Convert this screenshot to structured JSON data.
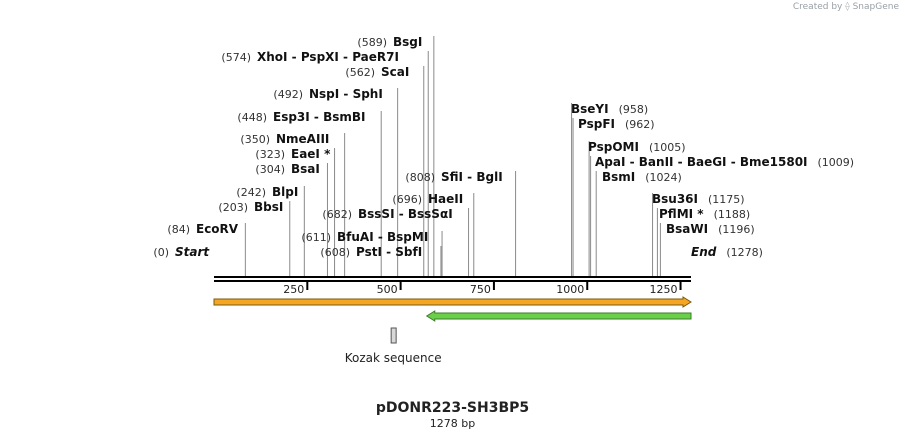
{
  "credit": {
    "prefix": "Created by",
    "brand": "SnapGene"
  },
  "plasmid": {
    "name": "pDONR223-SH3BP5",
    "length_label": "1278 bp",
    "length_bp": 1278
  },
  "ruler": {
    "ticks": [
      250,
      500,
      750,
      1000,
      1250
    ]
  },
  "sites": [
    {
      "pos": 0,
      "label": "Start",
      "pos_label": "(0)",
      "italic": true
    },
    {
      "pos": 84,
      "label": "EcoRV",
      "pos_label": "(84)"
    },
    {
      "pos": 203,
      "label": "BbsI",
      "pos_label": "(203)"
    },
    {
      "pos": 242,
      "label": "BlpI",
      "pos_label": "(242)"
    },
    {
      "pos": 304,
      "label": "BsaI",
      "pos_label": "(304)"
    },
    {
      "pos": 323,
      "label": "EaeI *",
      "pos_label": "(323)"
    },
    {
      "pos": 350,
      "label": "NmeAIII",
      "pos_label": "(350)"
    },
    {
      "pos": 448,
      "label": "Esp3I  -  BsmBI",
      "pos_label": "(448)"
    },
    {
      "pos": 492,
      "label": "NspI  -  SphI",
      "pos_label": "(492)"
    },
    {
      "pos": 562,
      "label": "ScaI",
      "pos_label": "(562)"
    },
    {
      "pos": 574,
      "label": "XhoI  -  PspXI  -  PaeR7I",
      "pos_label": "(574)"
    },
    {
      "pos": 589,
      "label": "BsgI",
      "pos_label": "(589)"
    },
    {
      "pos": 608,
      "label": "PstI  -  SbfI",
      "pos_label": "(608)"
    },
    {
      "pos": 611,
      "label": "BfuAI  -  BspMI",
      "pos_label": "(611)"
    },
    {
      "pos": 682,
      "label": "BssSI  -  BssSαI",
      "pos_label": "(682)"
    },
    {
      "pos": 696,
      "label": "HaeII",
      "pos_label": "(696)"
    },
    {
      "pos": 808,
      "label": "SfiI  -  BglI",
      "pos_label": "(808)"
    },
    {
      "pos": 958,
      "label": "BseYI",
      "pos_label": "(958)"
    },
    {
      "pos": 962,
      "label": "PspFI",
      "pos_label": "(962)"
    },
    {
      "pos": 1005,
      "label": "PspOMI",
      "pos_label": "(1005)"
    },
    {
      "pos": 1009,
      "label": "ApaI  -  BanII  -  BaeGI  -  Bme1580I",
      "pos_label": "(1009)"
    },
    {
      "pos": 1024,
      "label": "BsmI",
      "pos_label": "(1024)"
    },
    {
      "pos": 1175,
      "label": "Bsu36I",
      "pos_label": "(1175)"
    },
    {
      "pos": 1188,
      "label": "PflMI *",
      "pos_label": "(1188)"
    },
    {
      "pos": 1196,
      "label": "BsaWI",
      "pos_label": "(1196)"
    },
    {
      "pos": 1278,
      "label": "End",
      "pos_label": "(1278)",
      "italic": true
    }
  ],
  "features": [
    {
      "name": "orange-arrow",
      "start": 0,
      "end": 1278,
      "direction": "forward",
      "fill": "#f5a623",
      "stroke": "#7a5a10"
    },
    {
      "name": "green-arrow",
      "start": 570,
      "end": 1278,
      "direction": "reverse",
      "fill": "#6ad04a",
      "stroke": "#3b7d2a"
    }
  ],
  "kozak": {
    "label": "Kozak sequence",
    "pos": 480
  },
  "colors": {
    "backbone": "#000000",
    "line": "#8a8a8a",
    "label": "#111111",
    "poslabel": "#333333"
  }
}
